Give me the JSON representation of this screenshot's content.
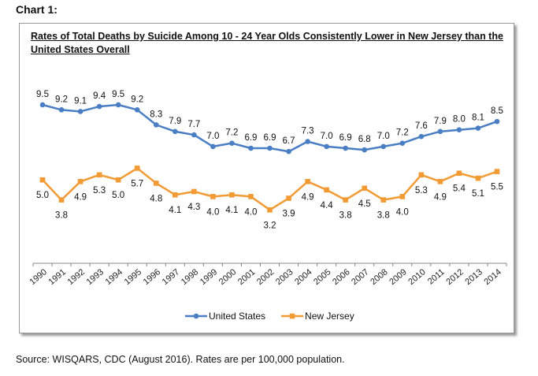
{
  "heading": "Chart 1:",
  "source": "Source:  WISQARS, CDC (August 2016). Rates are per 100,000 population.",
  "chart_data": {
    "type": "line",
    "title": "Rates of Total Deaths by Suicide Among 10 - 24 Year Olds Consistently Lower in New Jersey than the United States Overall",
    "xlabel": "",
    "ylabel": "",
    "ylim": [
      0,
      10.5
    ],
    "grid": false,
    "legend": "bottom",
    "categories": [
      "1990",
      "1991",
      "1992",
      "1993",
      "1994",
      "1995",
      "1996",
      "1997",
      "1998",
      "1999",
      "2000",
      "2001",
      "2002",
      "2003",
      "2004",
      "2005",
      "2006",
      "2007",
      "2008",
      "2009",
      "2010",
      "2011",
      "2012",
      "2013",
      "2014"
    ],
    "series": [
      {
        "name": "United States",
        "color": "#4a7ec4",
        "marker": "circle",
        "label_position": "above",
        "values": [
          9.5,
          9.2,
          9.1,
          9.4,
          9.5,
          9.2,
          8.3,
          7.9,
          7.7,
          7.0,
          7.2,
          6.9,
          6.9,
          6.7,
          7.3,
          7.0,
          6.9,
          6.8,
          7.0,
          7.2,
          7.6,
          7.9,
          8.0,
          8.1,
          8.5
        ]
      },
      {
        "name": "New Jersey",
        "color": "#f29a34",
        "marker": "square",
        "label_position": "below",
        "values": [
          5.0,
          3.8,
          4.9,
          5.3,
          5.0,
          5.7,
          4.8,
          4.1,
          4.3,
          4.0,
          4.1,
          4.0,
          3.2,
          3.9,
          4.9,
          4.4,
          3.8,
          4.5,
          3.8,
          4.0,
          5.3,
          4.9,
          5.4,
          5.1,
          5.5
        ]
      }
    ]
  }
}
